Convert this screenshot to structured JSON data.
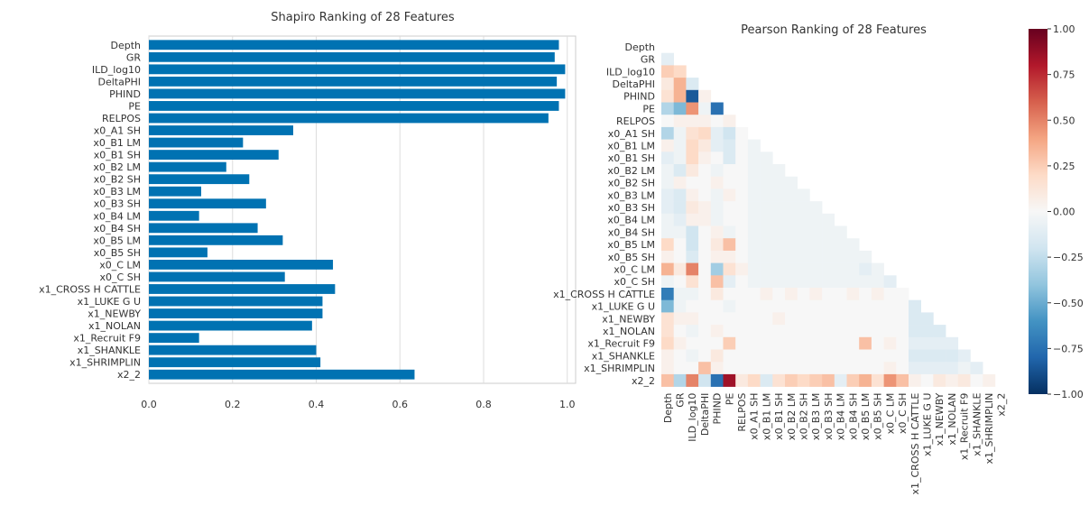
{
  "chart_data": [
    {
      "type": "bar",
      "orientation": "horizontal",
      "title": "Shapiro Ranking of 28 Features",
      "categories": [
        "Depth",
        "GR",
        "ILD_log10",
        "DeltaPHI",
        "PHIND",
        "PE",
        "RELPOS",
        "x0_A1 SH",
        "x0_B1 LM",
        "x0_B1 SH",
        "x0_B2 LM",
        "x0_B2 SH",
        "x0_B3 LM",
        "x0_B3 SH",
        "x0_B4 LM",
        "x0_B4 SH",
        "x0_B5 LM",
        "x0_B5 SH",
        "x0_C LM",
        "x0_C SH",
        "x1_CROSS H CATTLE",
        "x1_LUKE G U",
        "x1_NEWBY",
        "x1_NOLAN",
        "x1_Recruit F9",
        "x1_SHANKLE",
        "x1_SHRIMPLIN",
        "x2_2"
      ],
      "values": [
        0.98,
        0.97,
        0.995,
        0.975,
        0.995,
        0.98,
        0.955,
        0.345,
        0.225,
        0.31,
        0.185,
        0.24,
        0.125,
        0.28,
        0.12,
        0.26,
        0.32,
        0.14,
        0.44,
        0.325,
        0.445,
        0.415,
        0.415,
        0.39,
        0.12,
        0.4,
        0.41,
        0.635
      ],
      "xlim": [
        0,
        1.02
      ],
      "xticks": [
        "0.0",
        "0.2",
        "0.4",
        "0.6",
        "0.8",
        "1.0"
      ],
      "color": "#0072b2",
      "grid": true
    },
    {
      "type": "heatmap",
      "title": "Pearson Ranking of 28 Features",
      "labels": [
        "Depth",
        "GR",
        "ILD_log10",
        "DeltaPHI",
        "PHIND",
        "PE",
        "RELPOS",
        "x0_A1 SH",
        "x0_B1 LM",
        "x0_B1 SH",
        "x0_B2 LM",
        "x0_B2 SH",
        "x0_B3 LM",
        "x0_B3 SH",
        "x0_B4 LM",
        "x0_B4 SH",
        "x0_B5 LM",
        "x0_B5 SH",
        "x0_C LM",
        "x0_C SH",
        "x1_CROSS H CATTLE",
        "x1_LUKE G U",
        "x1_NEWBY",
        "x1_NOLAN",
        "x1_Recruit F9",
        "x1_SHANKLE",
        "x1_SHRIMPLIN",
        "x2_2"
      ],
      "mask": "lower-triangle",
      "values": [
        [],
        [
          -0.1
        ],
        [
          0.25,
          0.2
        ],
        [
          0.1,
          0.35,
          -0.15
        ],
        [
          0.15,
          0.35,
          -0.85,
          0.05
        ],
        [
          -0.3,
          -0.45,
          0.45,
          -0.05,
          -0.75
        ],
        [
          0.0,
          0.05,
          0.05,
          0.05,
          0.0,
          0.05
        ],
        [
          -0.3,
          -0.05,
          0.15,
          0.2,
          -0.1,
          -0.2
        ],
        [
          0.05,
          -0.05,
          0.2,
          0.1,
          -0.1,
          -0.15,
          0.0,
          -0.05
        ],
        [
          -0.1,
          -0.05,
          0.2,
          0.05,
          0.0,
          -0.15,
          0.0,
          -0.05,
          -0.05
        ],
        [
          -0.05,
          -0.15,
          0.1,
          0.0,
          -0.05,
          0.0,
          0.0,
          -0.05,
          -0.05,
          -0.05
        ],
        [
          -0.05,
          0.05,
          0.0,
          0.0,
          0.05,
          0.0,
          0.0,
          -0.05,
          -0.05,
          -0.05,
          -0.05
        ],
        [
          -0.1,
          -0.15,
          0.05,
          0.0,
          -0.05,
          0.05,
          0.0,
          -0.05,
          -0.05,
          -0.05,
          -0.05,
          -0.05
        ],
        [
          -0.1,
          -0.15,
          0.1,
          0.05,
          -0.05,
          0.0,
          0.0,
          -0.05,
          -0.05,
          -0.05,
          -0.05,
          -0.05,
          -0.05
        ],
        [
          -0.05,
          -0.1,
          0.05,
          0.05,
          -0.05,
          0.0,
          0.0,
          -0.05,
          -0.05,
          -0.05,
          -0.05,
          -0.05,
          -0.05,
          -0.05
        ],
        [
          -0.05,
          -0.05,
          -0.2,
          0.0,
          0.05,
          -0.05,
          0.0,
          -0.05,
          -0.05,
          -0.05,
          -0.05,
          -0.05,
          -0.05,
          -0.05,
          -0.05
        ],
        [
          0.2,
          0.0,
          -0.2,
          0.0,
          0.1,
          0.3,
          0.0,
          -0.05,
          -0.05,
          -0.05,
          -0.05,
          -0.05,
          -0.05,
          -0.05,
          -0.05,
          -0.05
        ],
        [
          0.05,
          0.0,
          -0.15,
          0.0,
          0.05,
          0.05,
          0.0,
          -0.05,
          -0.05,
          -0.05,
          -0.05,
          -0.05,
          -0.05,
          -0.05,
          -0.05,
          -0.05,
          -0.05
        ],
        [
          0.35,
          0.1,
          0.5,
          0.0,
          -0.35,
          0.15,
          0.05,
          -0.05,
          -0.05,
          -0.05,
          -0.05,
          -0.05,
          -0.05,
          -0.05,
          -0.05,
          -0.05,
          -0.1,
          -0.05
        ],
        [
          -0.05,
          0.0,
          0.15,
          0.0,
          0.3,
          -0.1,
          0.0,
          -0.05,
          -0.05,
          -0.05,
          -0.05,
          -0.05,
          -0.05,
          -0.05,
          -0.05,
          -0.05,
          -0.05,
          -0.05,
          -0.1
        ],
        [
          -0.7,
          -0.05,
          -0.05,
          0.0,
          0.1,
          0.0,
          0.0,
          0.0,
          0.05,
          0.0,
          0.05,
          0.0,
          0.05,
          0.0,
          0.0,
          0.05,
          0.0,
          0.05,
          0.0,
          0.0
        ],
        [
          -0.45,
          -0.05,
          0.0,
          0.0,
          0.0,
          -0.05,
          0.0,
          0.0,
          0.0,
          0.0,
          0.0,
          0.0,
          0.0,
          0.0,
          0.0,
          0.0,
          0.0,
          0.0,
          0.0,
          0.0,
          -0.15
        ],
        [
          0.15,
          0.05,
          0.05,
          0.0,
          0.0,
          0.0,
          0.0,
          0.0,
          0.0,
          0.05,
          0.0,
          0.0,
          0.0,
          0.0,
          0.0,
          0.0,
          0.0,
          0.0,
          0.0,
          0.0,
          -0.15,
          -0.15
        ],
        [
          0.15,
          0.0,
          -0.05,
          0.0,
          0.05,
          0.0,
          0.0,
          0.0,
          0.0,
          0.0,
          0.0,
          0.0,
          0.0,
          0.0,
          0.0,
          0.0,
          0.0,
          0.0,
          0.0,
          0.0,
          -0.15,
          -0.15,
          -0.15
        ],
        [
          0.2,
          0.05,
          0.0,
          0.0,
          0.0,
          0.25,
          0.0,
          0.0,
          0.0,
          0.0,
          0.0,
          0.0,
          0.0,
          0.0,
          0.0,
          0.0,
          0.3,
          0.0,
          0.05,
          0.0,
          -0.1,
          -0.1,
          -0.1,
          -0.1
        ],
        [
          0.05,
          0.0,
          -0.05,
          0.0,
          0.1,
          0.0,
          0.0,
          0.0,
          0.0,
          0.0,
          0.0,
          0.0,
          0.0,
          0.0,
          0.0,
          0.0,
          0.0,
          0.0,
          0.0,
          0.0,
          -0.15,
          -0.15,
          -0.15,
          -0.15,
          -0.1
        ],
        [
          0.05,
          0.0,
          0.0,
          0.3,
          0.05,
          0.0,
          0.0,
          0.0,
          0.0,
          0.0,
          0.0,
          0.0,
          0.0,
          0.0,
          0.0,
          0.0,
          0.0,
          0.0,
          0.05,
          0.0,
          -0.1,
          -0.1,
          -0.1,
          -0.1,
          -0.05,
          -0.1
        ],
        [
          0.3,
          -0.3,
          0.5,
          -0.2,
          -0.75,
          0.85,
          0.1,
          0.2,
          -0.15,
          0.15,
          0.25,
          0.2,
          0.25,
          0.3,
          -0.1,
          0.25,
          0.35,
          0.15,
          0.45,
          0.3,
          0.05,
          0.0,
          0.1,
          0.05,
          0.1,
          0.0,
          0.05
        ]
      ],
      "colorbar": {
        "min": -1.0,
        "max": 1.0,
        "ticks": [
          "1.00",
          "0.75",
          "0.50",
          "0.25",
          "0.00",
          "−0.25",
          "−0.50",
          "−0.75",
          "−1.00"
        ]
      }
    }
  ]
}
